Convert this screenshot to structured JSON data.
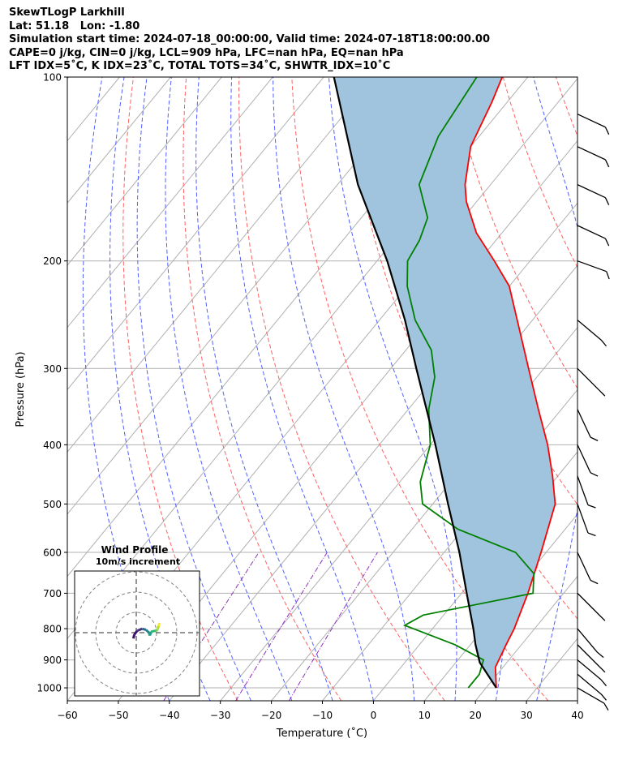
{
  "header": {
    "line1": "SkewTLogP Larkhill",
    "line2": "Lat: 51.18   Lon: -1.80",
    "line3": "Simulation start time: 2024-07-18_00:00:00, Valid time: 2024-07-18T18:00:00.00",
    "line4": "CAPE=0 j/kg, CIN=0 j/kg, LCL=909 hPa, LFC=nan hPa, EQ=nan hPa",
    "line5": "LFT IDX=5˚C, K IDX=23˚C, TOTAL TOTS=34˚C, SHWTR_IDX=10˚C"
  },
  "chart_data": {
    "type": "skewt",
    "xlabel": "Temperature (˚C)",
    "ylabel": "Pressure (hPa)",
    "x_ticks": [
      "−60",
      "−50",
      "−40",
      "−30",
      "−20",
      "−10",
      "0",
      "10",
      "20",
      "30",
      "40"
    ],
    "y_ticks": [
      "100",
      "200",
      "300",
      "400",
      "500",
      "600",
      "700",
      "800",
      "900",
      "1000"
    ],
    "ylim_hPa": [
      1050,
      100
    ],
    "xlim_C": [
      -60,
      40
    ],
    "series": [
      {
        "name": "temperature",
        "color": "#ff0000",
        "points": [
          [
            1000,
            22
          ],
          [
            925,
            18.5
          ],
          [
            850,
            17
          ],
          [
            800,
            16
          ],
          [
            700,
            13
          ],
          [
            600,
            9
          ],
          [
            500,
            4
          ],
          [
            450,
            -1
          ],
          [
            400,
            -7
          ],
          [
            350,
            -14.5
          ],
          [
            300,
            -23
          ],
          [
            250,
            -33
          ],
          [
            220,
            -40
          ],
          [
            200,
            -47
          ],
          [
            180,
            -55
          ],
          [
            160,
            -62
          ],
          [
            150,
            -65
          ],
          [
            130,
            -70
          ],
          [
            110,
            -73
          ],
          [
            100,
            -75
          ]
        ]
      },
      {
        "name": "dewpoint",
        "color": "#008000",
        "points": [
          [
            1000,
            16.5
          ],
          [
            950,
            16.5
          ],
          [
            900,
            15
          ],
          [
            850,
            7
          ],
          [
            790,
            -6
          ],
          [
            760,
            -4
          ],
          [
            700,
            14
          ],
          [
            650,
            11
          ],
          [
            600,
            4
          ],
          [
            550,
            -11
          ],
          [
            500,
            -22
          ],
          [
            460,
            -26
          ],
          [
            400,
            -30
          ],
          [
            350,
            -36
          ],
          [
            310,
            -40
          ],
          [
            280,
            -45
          ],
          [
            250,
            -53
          ],
          [
            220,
            -60
          ],
          [
            200,
            -64
          ],
          [
            185,
            -65
          ],
          [
            170,
            -67
          ],
          [
            150,
            -74
          ],
          [
            125,
            -78
          ],
          [
            100,
            -80
          ]
        ]
      },
      {
        "name": "parcel",
        "color": "#000000",
        "points": [
          [
            1000,
            22
          ],
          [
            909,
            14.7
          ],
          [
            850,
            11
          ],
          [
            800,
            8
          ],
          [
            700,
            1
          ],
          [
            600,
            -7
          ],
          [
            500,
            -17
          ],
          [
            400,
            -29
          ],
          [
            300,
            -45
          ],
          [
            250,
            -55
          ],
          [
            200,
            -68
          ],
          [
            150,
            -86
          ],
          [
            100,
            -108
          ]
        ]
      }
    ],
    "winds": [
      {
        "p": 1000,
        "speed": 10,
        "dir": 240
      },
      {
        "p": 950,
        "speed": 10,
        "dir": 230
      },
      {
        "p": 900,
        "speed": 10,
        "dir": 230
      },
      {
        "p": 850,
        "speed": 10,
        "dir": 225
      },
      {
        "p": 800,
        "speed": 10,
        "dir": 220
      },
      {
        "p": 700,
        "speed": 10,
        "dir": 225
      },
      {
        "p": 600,
        "speed": 10,
        "dir": 205
      },
      {
        "p": 500,
        "speed": 10,
        "dir": 200
      },
      {
        "p": 450,
        "speed": 10,
        "dir": 200
      },
      {
        "p": 400,
        "speed": 10,
        "dir": 205
      },
      {
        "p": 350,
        "speed": 10,
        "dir": 205
      },
      {
        "p": 300,
        "speed": 10,
        "dir": 225
      },
      {
        "p": 250,
        "speed": 15,
        "dir": 230
      },
      {
        "p": 200,
        "speed": 15,
        "dir": 250
      },
      {
        "p": 175,
        "speed": 15,
        "dir": 245
      },
      {
        "p": 150,
        "speed": 15,
        "dir": 245
      },
      {
        "p": 130,
        "speed": 15,
        "dir": 245
      },
      {
        "p": 115,
        "speed": 15,
        "dir": 245
      }
    ],
    "inset": {
      "title": "Wind Profile",
      "subtitle": "10m/s increment",
      "rings": 3,
      "hodograph": [
        [
          -0.3,
          -0.6
        ],
        [
          -0.2,
          -0.2
        ],
        [
          0.1,
          0.2
        ],
        [
          0.6,
          0.4
        ],
        [
          1.0,
          0.3
        ],
        [
          1.3,
          0.0
        ],
        [
          1.4,
          -0.3
        ],
        [
          1.5,
          0.1
        ],
        [
          2.0,
          0.2
        ],
        [
          2.2,
          0.3
        ],
        [
          2.3,
          0.7
        ],
        [
          2.4,
          1.0
        ]
      ]
    }
  }
}
